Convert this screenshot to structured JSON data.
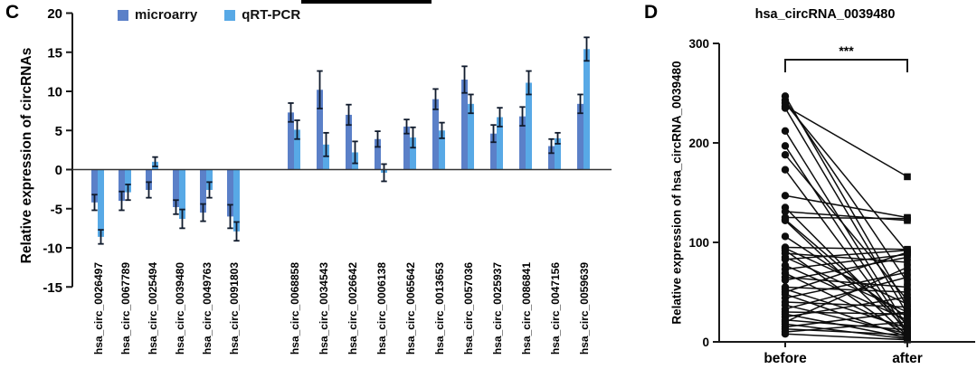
{
  "page": {
    "background": "#ffffff"
  },
  "panel_c": {
    "letter": "C"
  },
  "panel_d": {
    "letter": "D"
  },
  "chart_data": [
    {
      "type": "bar",
      "panel": "C",
      "ylabel": "Relative expression of circRNAs",
      "ylim": [
        -15,
        20
      ],
      "yticks": [
        20,
        15,
        10,
        5,
        0,
        -5,
        -10,
        -15
      ],
      "grid": false,
      "legend_position": "top",
      "group_gap_after_index": 5,
      "categories": [
        "hsa_circ_0026497",
        "hsa_circ_0067789",
        "hsa_circ_0025494",
        "hsa_circ_0039480",
        "hsa_circ_0049763",
        "hsa_circ_0091803",
        "hsa_circ_0068858",
        "hsa_circ_0034543",
        "hsa_circ_0026642",
        "hsa_circ_0006138",
        "hsa_circ_0065642",
        "hsa_circ_0013653",
        "hsa_circ_0057036",
        "hsa_circ_0025937",
        "hsa_circ_0086841",
        "hsa_circ_0047156",
        "hsa_circ_0059639"
      ],
      "series": [
        {
          "name": "microarry",
          "color": "#5b80c8",
          "values": [
            -4.2,
            -4.0,
            -2.6,
            -4.8,
            -5.5,
            -6.0,
            7.3,
            10.2,
            7.0,
            3.9,
            5.5,
            9.0,
            11.5,
            4.6,
            6.8,
            3.0,
            8.4
          ],
          "errors": [
            1.0,
            1.2,
            1.0,
            0.9,
            1.1,
            1.5,
            1.2,
            2.4,
            1.3,
            1.0,
            0.9,
            1.3,
            1.7,
            1.1,
            1.2,
            0.9,
            1.2
          ]
        },
        {
          "name": "qRT-PCR",
          "color": "#58a9e6",
          "values": [
            -8.6,
            -2.9,
            1.0,
            -6.3,
            -2.6,
            -7.9,
            5.1,
            3.2,
            2.2,
            -0.4,
            4.1,
            5.0,
            8.4,
            6.7,
            11.1,
            4.0,
            15.4
          ],
          "errors": [
            0.9,
            1.0,
            0.6,
            1.2,
            1.0,
            1.2,
            1.2,
            1.5,
            1.4,
            1.1,
            1.3,
            1.0,
            1.2,
            1.2,
            1.5,
            0.7,
            1.5
          ]
        }
      ],
      "error_bar_color": "#101b2d"
    },
    {
      "type": "paired-line",
      "panel": "D",
      "title": "hsa_circRNA_0039480",
      "ylabel": "Relative expression of hsa_circRNA_0039480",
      "ylim": [
        0,
        300
      ],
      "yticks": [
        300,
        200,
        100,
        0
      ],
      "categories": [
        "before",
        "after"
      ],
      "markers": [
        "circle",
        "square"
      ],
      "significance": "***",
      "point_color": "#0d0d0d",
      "pairs": [
        [
          247,
          35
        ],
        [
          243,
          60
        ],
        [
          240,
          90
        ],
        [
          237,
          166
        ],
        [
          235,
          28
        ],
        [
          212,
          15
        ],
        [
          197,
          10
        ],
        [
          188,
          42
        ],
        [
          173,
          8
        ],
        [
          147,
          125
        ],
        [
          135,
          12
        ],
        [
          131,
          122
        ],
        [
          125,
          124
        ],
        [
          123,
          18
        ],
        [
          122,
          6
        ],
        [
          106,
          25
        ],
        [
          95,
          93
        ],
        [
          94,
          38
        ],
        [
          92,
          5
        ],
        [
          89,
          80
        ],
        [
          85,
          30
        ],
        [
          83,
          92
        ],
        [
          77,
          22
        ],
        [
          73,
          88
        ],
        [
          69,
          10
        ],
        [
          65,
          55
        ],
        [
          62,
          85
        ],
        [
          55,
          50
        ],
        [
          53,
          14
        ],
        [
          50,
          90
        ],
        [
          48,
          5
        ],
        [
          44,
          70
        ],
        [
          40,
          35
        ],
        [
          37,
          8
        ],
        [
          33,
          65
        ],
        [
          30,
          28
        ],
        [
          28,
          4
        ],
        [
          25,
          45
        ],
        [
          22,
          12
        ],
        [
          20,
          75
        ],
        [
          18,
          3
        ],
        [
          15,
          30
        ],
        [
          13,
          7
        ],
        [
          10,
          20
        ],
        [
          8,
          2
        ]
      ]
    }
  ]
}
